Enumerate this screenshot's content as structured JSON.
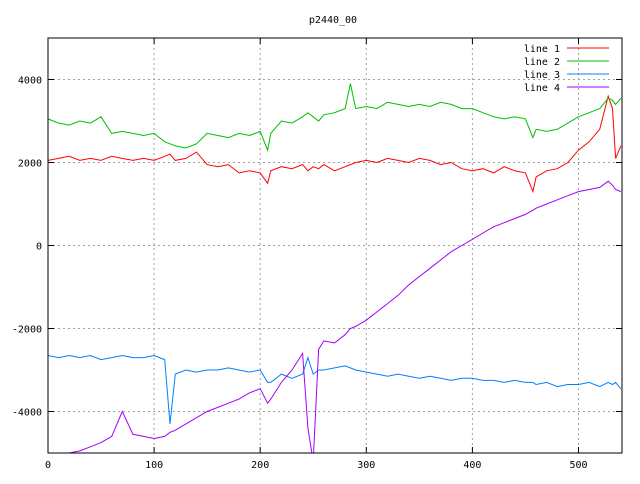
{
  "chart_data": {
    "type": "line",
    "title": "p2440_00",
    "xlabel": "",
    "ylabel": "",
    "xlim": [
      0,
      541
    ],
    "ylim": [
      -5000,
      5000
    ],
    "grid": true,
    "legend_position": "top-right",
    "xticks": [
      0,
      100,
      200,
      300,
      400,
      500
    ],
    "yticks": [
      -4000,
      -2000,
      0,
      2000,
      4000
    ],
    "x": [
      0,
      10,
      20,
      30,
      40,
      50,
      60,
      70,
      80,
      90,
      100,
      110,
      115,
      120,
      130,
      140,
      150,
      160,
      170,
      180,
      190,
      200,
      207,
      210,
      220,
      230,
      240,
      245,
      250,
      255,
      260,
      270,
      280,
      285,
      290,
      300,
      310,
      320,
      330,
      340,
      350,
      360,
      370,
      380,
      390,
      400,
      410,
      420,
      430,
      440,
      450,
      457,
      460,
      470,
      480,
      490,
      500,
      510,
      520,
      528,
      532,
      535,
      540
    ],
    "series": [
      {
        "name": "line 1",
        "color": "#ff0000",
        "values": [
          2050,
          2100,
          2150,
          2050,
          2100,
          2050,
          2150,
          2100,
          2050,
          2100,
          2050,
          2150,
          2200,
          2050,
          2100,
          2250,
          1950,
          1900,
          1950,
          1750,
          1800,
          1750,
          1500,
          1800,
          1900,
          1850,
          1950,
          1800,
          1900,
          1850,
          1950,
          1800,
          1900,
          1950,
          2000,
          2050,
          2000,
          2100,
          2050,
          2000,
          2100,
          2050,
          1950,
          2000,
          1850,
          1800,
          1850,
          1750,
          1900,
          1800,
          1750,
          1300,
          1650,
          1800,
          1850,
          2000,
          2300,
          2500,
          2800,
          3600,
          3300,
          2100,
          2400
        ]
      },
      {
        "name": "line 2",
        "color": "#00c000",
        "values": [
          3050,
          2950,
          2900,
          3000,
          2950,
          3100,
          2700,
          2750,
          2700,
          2650,
          2700,
          2500,
          2450,
          2400,
          2350,
          2450,
          2700,
          2650,
          2600,
          2700,
          2650,
          2750,
          2300,
          2700,
          3000,
          2950,
          3100,
          3200,
          3100,
          3000,
          3150,
          3200,
          3300,
          3900,
          3300,
          3350,
          3300,
          3450,
          3400,
          3350,
          3400,
          3350,
          3450,
          3400,
          3300,
          3300,
          3200,
          3100,
          3050,
          3100,
          3050,
          2600,
          2800,
          2750,
          2800,
          2950,
          3100,
          3200,
          3300,
          3550,
          3500,
          3400,
          3550
        ]
      },
      {
        "name": "line 3",
        "color": "#0080ff",
        "values": [
          -2650,
          -2700,
          -2650,
          -2700,
          -2650,
          -2750,
          -2700,
          -2650,
          -2700,
          -2700,
          -2650,
          -2750,
          -4300,
          -3100,
          -3000,
          -3050,
          -3000,
          -3000,
          -2950,
          -3000,
          -3050,
          -3000,
          -3300,
          -3300,
          -3100,
          -3200,
          -3100,
          -2700,
          -3100,
          -3000,
          -3000,
          -2950,
          -2900,
          -2950,
          -3000,
          -3050,
          -3100,
          -3150,
          -3100,
          -3150,
          -3200,
          -3150,
          -3200,
          -3250,
          -3200,
          -3200,
          -3250,
          -3250,
          -3300,
          -3250,
          -3300,
          -3300,
          -3350,
          -3300,
          -3400,
          -3350,
          -3350,
          -3300,
          -3400,
          -3300,
          -3350,
          -3300,
          -3450
        ]
      },
      {
        "name": "line 4",
        "color": "#a000ff",
        "values": [
          -5200,
          -5100,
          -5000,
          -4950,
          -4850,
          -4750,
          -4600,
          -4000,
          -4550,
          -4600,
          -4650,
          -4600,
          -4500,
          -4450,
          -4300,
          -4150,
          -4000,
          -3900,
          -3800,
          -3700,
          -3550,
          -3450,
          -3800,
          -3700,
          -3300,
          -3000,
          -2600,
          -4400,
          -5200,
          -2500,
          -2300,
          -2350,
          -2150,
          -2000,
          -1950,
          -1800,
          -1600,
          -1400,
          -1200,
          -950,
          -750,
          -550,
          -350,
          -150,
          0,
          150,
          300,
          450,
          550,
          650,
          750,
          850,
          900,
          1000,
          1100,
          1200,
          1300,
          1350,
          1400,
          1550,
          1450,
          1350,
          1300
        ]
      }
    ]
  }
}
